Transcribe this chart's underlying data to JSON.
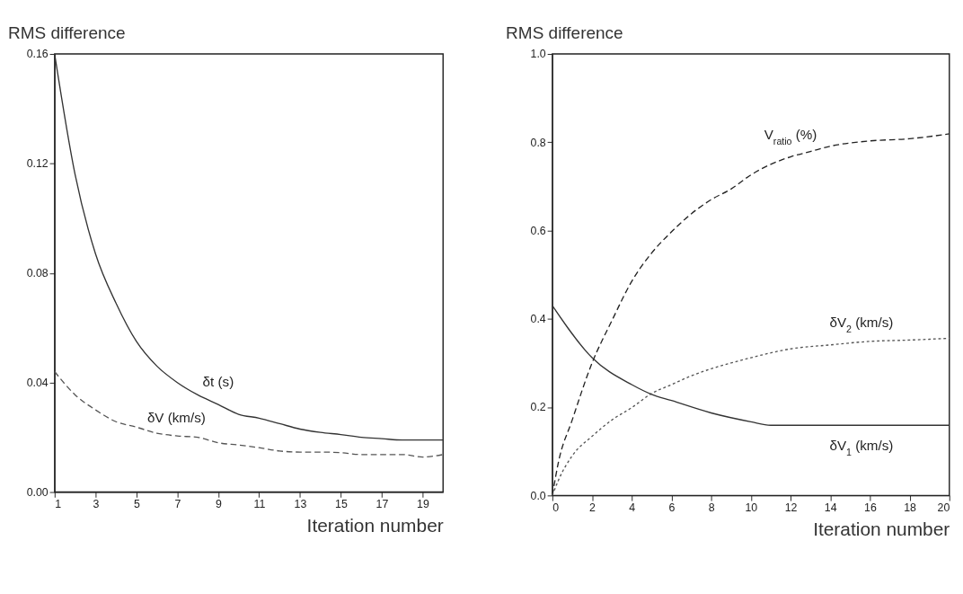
{
  "chart_data": [
    {
      "type": "line",
      "xlabel": "Iteration number",
      "ylabel": "RMS difference",
      "xlim": [
        1,
        20
      ],
      "ylim": [
        0,
        0.16
      ],
      "xticks": [
        1,
        3,
        5,
        7,
        9,
        11,
        13,
        15,
        17,
        19
      ],
      "yticks": [
        {
          "value": 0,
          "label": "0.00"
        },
        {
          "value": 0.04,
          "label": "0.04"
        },
        {
          "value": 0.08,
          "label": "0.08"
        },
        {
          "value": 0.12,
          "label": "0.12"
        },
        {
          "value": 0.16,
          "label": "0.16"
        }
      ],
      "grid": false,
      "series": [
        {
          "name": "δt (s)",
          "color": "#333333",
          "line_style": "solid",
          "x": [
            1,
            2,
            3,
            4,
            5,
            6,
            7,
            8,
            9,
            10,
            11,
            12,
            13,
            14,
            15,
            16,
            17,
            18,
            19,
            20
          ],
          "values": [
            0.16,
            0.116,
            0.087,
            0.069,
            0.055,
            0.046,
            0.04,
            0.0355,
            0.032,
            0.0284,
            0.027,
            0.025,
            0.023,
            0.0218,
            0.021,
            0.02,
            0.0195,
            0.019,
            0.019,
            0.019
          ]
        },
        {
          "name": "δV (km/s)",
          "color": "#555555",
          "line_style": "dashed",
          "x": [
            1,
            2,
            3,
            4,
            5,
            6,
            7,
            8,
            9,
            10,
            11,
            12,
            13,
            14,
            15,
            16,
            17,
            18,
            19,
            20
          ],
          "values": [
            0.044,
            0.0355,
            0.03,
            0.0257,
            0.0237,
            0.0215,
            0.0205,
            0.02,
            0.018,
            0.0172,
            0.0162,
            0.015,
            0.0146,
            0.0146,
            0.0144,
            0.0137,
            0.0137,
            0.0137,
            0.0128,
            0.0137
          ]
        }
      ]
    },
    {
      "type": "line",
      "xlabel": "Iteration number",
      "ylabel": "RMS difference",
      "xlim": [
        0,
        20
      ],
      "ylim": [
        0,
        1
      ],
      "xticks": [
        0,
        2,
        4,
        6,
        8,
        10,
        12,
        14,
        16,
        18,
        20
      ],
      "yticks": [
        {
          "value": 0,
          "label": "0.0"
        },
        {
          "value": 0.2,
          "label": "0.2"
        },
        {
          "value": 0.4,
          "label": "0.4"
        },
        {
          "value": 0.6,
          "label": "0.6"
        },
        {
          "value": 0.8,
          "label": "0.8"
        },
        {
          "value": 1,
          "label": "1.0"
        }
      ],
      "grid": false,
      "series": [
        {
          "name": "V$_{ratio}$ (%)",
          "color": "#222222",
          "line_style": "dashed",
          "x": [
            0,
            0.3,
            1,
            2,
            3,
            4,
            5,
            6,
            7,
            8,
            9,
            10,
            11,
            12,
            13,
            14,
            16,
            18,
            20
          ],
          "values": [
            0,
            0.074,
            0.171,
            0.3,
            0.396,
            0.485,
            0.549,
            0.597,
            0.638,
            0.67,
            0.694,
            0.726,
            0.75,
            0.767,
            0.779,
            0.791,
            0.803,
            0.808,
            0.819
          ]
        },
        {
          "name": "δV$_{2}$ (km/s)",
          "color": "#555555",
          "line_style": "dotted",
          "x": [
            0,
            0.3,
            1,
            2,
            3,
            4,
            5,
            6,
            7,
            8,
            9,
            10,
            12,
            14,
            16,
            18,
            20
          ],
          "values": [
            0,
            0.034,
            0.09,
            0.134,
            0.171,
            0.199,
            0.231,
            0.251,
            0.271,
            0.287,
            0.3,
            0.312,
            0.332,
            0.341,
            0.349,
            0.352,
            0.356
          ]
        },
        {
          "name": "δV$_{1}$ (km/s)",
          "color": "#333333",
          "line_style": "solid",
          "x": [
            0,
            2,
            4,
            5,
            6,
            8,
            10,
            11,
            12,
            14,
            16,
            18,
            20
          ],
          "values": [
            0.43,
            0.312,
            0.251,
            0.229,
            0.215,
            0.187,
            0.167,
            0.159,
            0.159,
            0.159,
            0.159,
            0.159,
            0.159
          ]
        }
      ]
    }
  ]
}
